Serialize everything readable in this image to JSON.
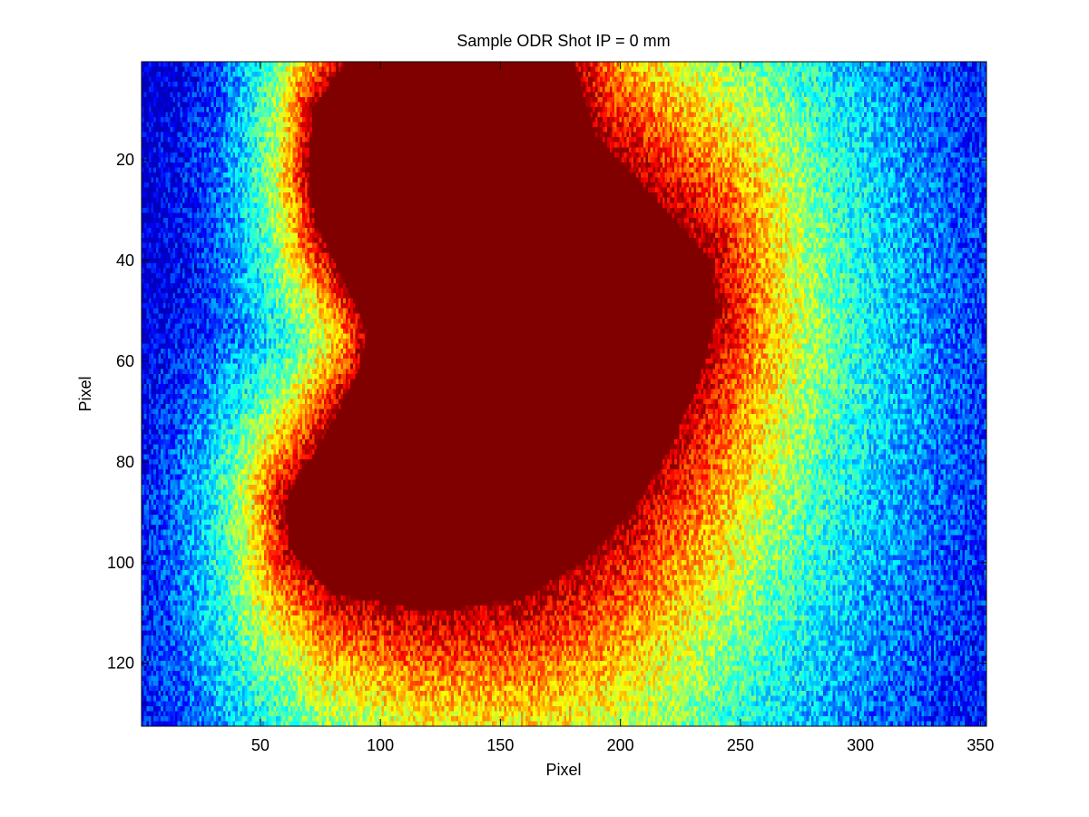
{
  "chart_data": {
    "type": "heatmap",
    "title": "Sample ODR Shot IP = 0 mm",
    "xlabel": "Pixel",
    "ylabel": "Pixel",
    "xlim": [
      0.5,
      352.5
    ],
    "ylim": [
      0.5,
      132.5
    ],
    "y_reversed": true,
    "x_ticks": [
      50,
      100,
      150,
      200,
      250,
      300,
      350
    ],
    "y_ticks": [
      20,
      40,
      60,
      80,
      100,
      120
    ],
    "colormap": "jet",
    "grid": false,
    "legend": "none",
    "saturated_region": {
      "description": "saturated core (dark red)",
      "boundary_points": [
        [
          88,
          0
        ],
        [
          180,
          0
        ],
        [
          190,
          15
        ],
        [
          210,
          25
        ],
        [
          238,
          40
        ],
        [
          240,
          50
        ],
        [
          232,
          65
        ],
        [
          220,
          78
        ],
        [
          205,
          90
        ],
        [
          185,
          100
        ],
        [
          160,
          107
        ],
        [
          120,
          110
        ],
        [
          80,
          106
        ],
        [
          62,
          97
        ],
        [
          60,
          88
        ],
        [
          70,
          80
        ],
        [
          80,
          72
        ],
        [
          90,
          63
        ],
        [
          95,
          55
        ],
        [
          86,
          45
        ],
        [
          73,
          33
        ],
        [
          70,
          22
        ],
        [
          72,
          10
        ],
        [
          80,
          4
        ]
      ]
    },
    "halo_bias": [
      30,
      15
    ]
  }
}
